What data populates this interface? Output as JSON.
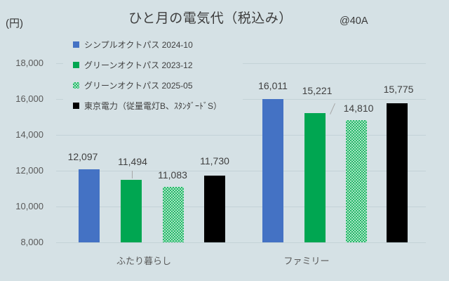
{
  "title": "ひと月の電気代（税込み）",
  "annotation": "@40A",
  "unit_label": "(円)",
  "legend": [
    {
      "label": "シンプルオクトパス 2024-10",
      "color": "#4472c4",
      "pattern": "solid"
    },
    {
      "label": "グリーンオクトパス 2023-12",
      "color": "#00a651",
      "pattern": "solid"
    },
    {
      "label": "グリーンオクトパス 2025-05",
      "color": "#00a651",
      "pattern": "dotted"
    },
    {
      "label": "東京電力（従量電灯B、ｽﾀﾝﾀﾞｰﾄﾞS）",
      "color": "#000000",
      "pattern": "solid"
    }
  ],
  "chart_data": {
    "type": "bar",
    "title": "ひと月の電気代（税込み）",
    "ylabel": "(円)",
    "categories": [
      "ふたり暮らし",
      "ファミリー"
    ],
    "series": [
      {
        "name": "シンプルオクトパス 2024-10",
        "values": [
          12097,
          16011
        ],
        "color": "#4472c4",
        "pattern": "solid"
      },
      {
        "name": "グリーンオクトパス 2023-12",
        "values": [
          11494,
          15221
        ],
        "color": "#00a651",
        "pattern": "solid"
      },
      {
        "name": "グリーンオクトパス 2025-05",
        "values": [
          11083,
          14810
        ],
        "color": "#00a651",
        "pattern": "dotted"
      },
      {
        "name": "東京電力（従量電灯B、ｽﾀﾝﾀﾞｰﾄﾞS）",
        "values": [
          11730,
          15775
        ],
        "color": "#000000",
        "pattern": "solid"
      }
    ],
    "ylim": [
      8000,
      18000
    ],
    "yticks": [
      8000,
      10000,
      12000,
      14000,
      16000,
      18000
    ],
    "ytick_labels": [
      "8,000",
      "10,000",
      "12,000",
      "14,000",
      "16,000",
      "18,000"
    ],
    "grid": "horizontal",
    "legend_position": "upper-left-inside",
    "data_labels_visible": true
  },
  "colors": {
    "background": "#d5e1e5",
    "gridline": "#c3d2d7",
    "title_text": "#3d3d3d",
    "axis_text": "#595959",
    "data_label_text": "#3f3f3f",
    "legend_text": "#404040",
    "series_blue": "#4472c4",
    "series_green": "#00a651",
    "series_black": "#000000",
    "pattern_dark": "#26b568",
    "pattern_light": "#a9e8c6",
    "leader_line": "#a6a6a6"
  }
}
